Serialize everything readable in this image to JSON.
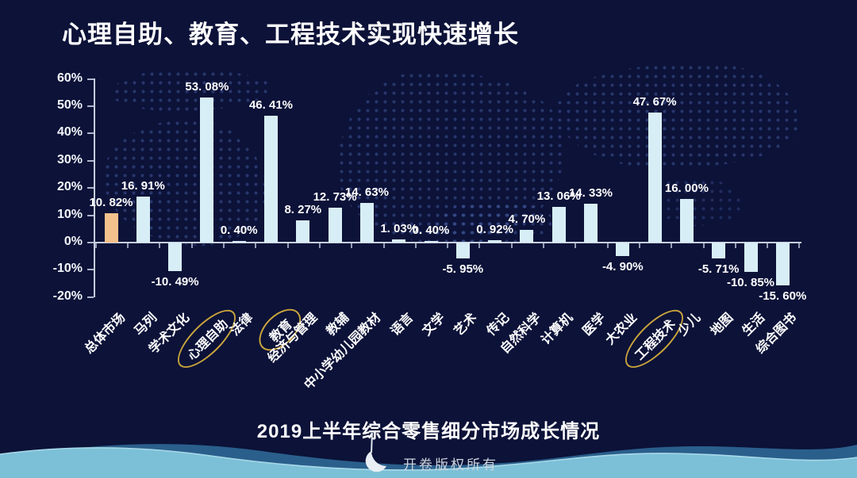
{
  "title": "心理自助、教育、工程技术实现快速增长",
  "caption": "2019上半年综合零售细分市场成长情况",
  "watermark": "开卷版权所有",
  "colors": {
    "background": "#0c1238",
    "bar": "#d8eef7",
    "highlight_bar": "#f3c28c",
    "annotation_ellipse": "#c9a43c",
    "axis": "#c6cedd",
    "wave_back": "#2e6694",
    "wave_front": "#7cc0d8"
  },
  "chart_data": {
    "type": "bar",
    "title": "2019上半年综合零售细分市场成长情况",
    "xlabel": "",
    "ylabel": "",
    "ylim": [
      -20,
      60
    ],
    "grid": false,
    "legend": null,
    "ytick_labels": [
      "60%",
      "50%",
      "40%",
      "30%",
      "20%",
      "10%",
      "0%",
      "-10%",
      "-20%"
    ],
    "ytick_values": [
      60,
      50,
      40,
      30,
      20,
      10,
      0,
      -10,
      -20
    ],
    "categories": [
      "总体市场",
      "马列",
      "学术文化",
      "心理自助",
      "法律",
      "教育",
      "经济与管理",
      "教辅",
      "中小学幼儿园教材",
      "语言",
      "文学",
      "艺术",
      "传记",
      "自然科学",
      "计算机",
      "医学",
      "大农业",
      "工程技术",
      "少儿",
      "地图",
      "生活",
      "综合图书"
    ],
    "values": [
      10.82,
      16.91,
      -10.49,
      53.08,
      0.4,
      46.41,
      8.27,
      12.73,
      14.63,
      1.03,
      0.4,
      -5.95,
      0.92,
      4.7,
      13.06,
      14.33,
      -4.9,
      47.67,
      16.0,
      -5.71,
      -10.85,
      -15.6
    ],
    "value_labels": [
      "10. 82%",
      "16. 91%",
      "-10. 49%",
      "53. 08%",
      "0. 40%",
      "46. 41%",
      "8. 27%",
      "12. 73%",
      "14. 63%",
      "1. 03%",
      "0. 40%",
      "-5. 95%",
      "0. 92%",
      "4. 70%",
      "13. 06%",
      "14. 33%",
      "-4. 90%",
      "47. 67%",
      "16. 00%",
      "-5. 71%",
      "-10. 85%",
      "-15. 60%"
    ],
    "highlight_index": 0,
    "circled_indices": [
      3,
      5,
      17
    ]
  }
}
